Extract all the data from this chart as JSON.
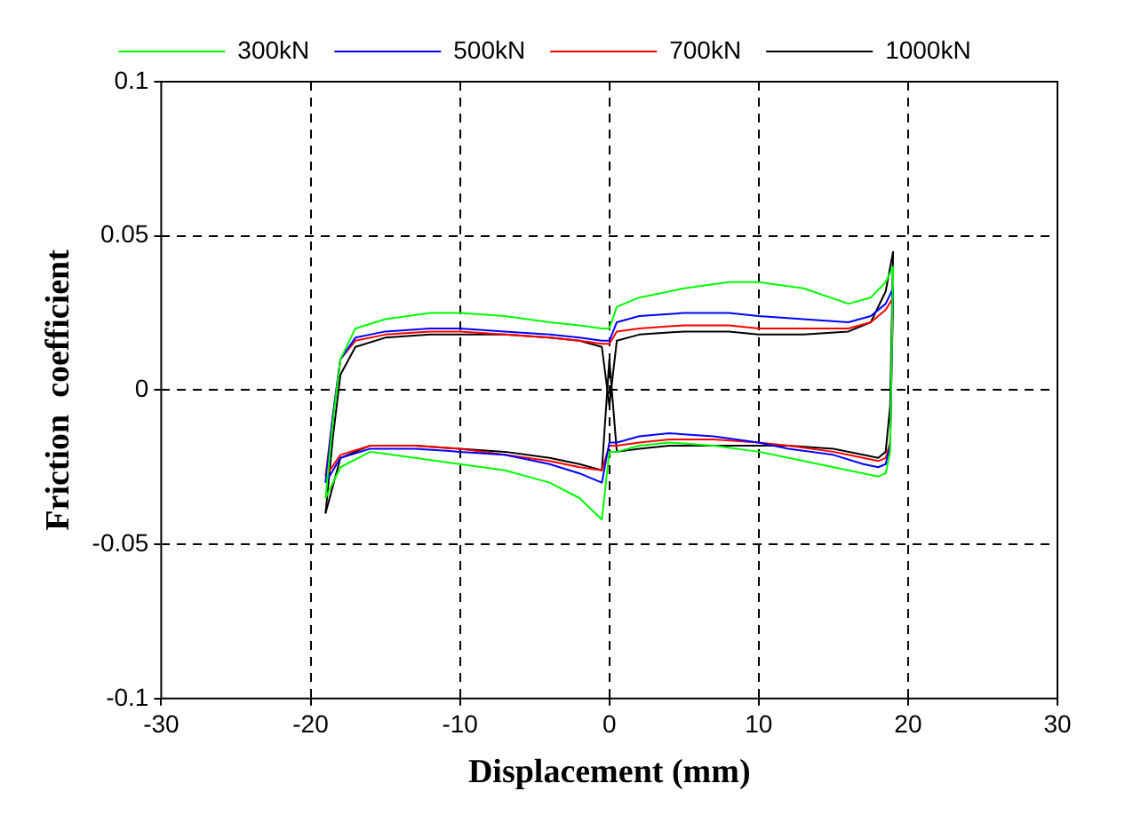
{
  "chart_data": {
    "type": "line",
    "xlabel": "Displacement (mm)",
    "ylabel": "Friction  coefficient",
    "xlim": [
      -30,
      30
    ],
    "xticks": [
      -30,
      -20,
      -10,
      0,
      10,
      20,
      30
    ],
    "ylim": [
      -0.1,
      0.1
    ],
    "yticks": [
      -0.1,
      -0.05,
      0,
      0.05,
      0.1
    ],
    "grid": true,
    "legend": "top",
    "marker": "none",
    "line_style": "solid",
    "series": [
      {
        "name": "300kN",
        "color": "#00ff00",
        "x": [
          -19,
          -18.5,
          -18,
          -17,
          -15,
          -12,
          -10,
          -7,
          -4,
          -2,
          -0.5,
          0,
          0.5,
          2,
          5,
          8,
          10,
          13,
          16,
          17.5,
          18.5,
          19
        ],
        "values": [
          -0.035,
          -0.01,
          0.01,
          0.02,
          0.023,
          0.025,
          0.025,
          0.024,
          0.022,
          0.021,
          0.02,
          0.02,
          0.027,
          0.03,
          0.033,
          0.035,
          0.035,
          0.033,
          0.028,
          0.03,
          0.035,
          0.04
        ]
      },
      {
        "color": "#00ff00",
        "x": [
          -19,
          -18,
          -16,
          -13,
          -10,
          -7,
          -4,
          -2,
          -0.5,
          0,
          0.5,
          2,
          4,
          7,
          10,
          12,
          15,
          17,
          18,
          18.5,
          18.8,
          19
        ],
        "values": [
          -0.035,
          -0.025,
          -0.02,
          -0.022,
          -0.024,
          -0.026,
          -0.03,
          -0.035,
          -0.042,
          -0.02,
          -0.02,
          -0.018,
          -0.017,
          -0.018,
          -0.02,
          -0.022,
          -0.025,
          -0.027,
          -0.028,
          -0.027,
          -0.02,
          0.04
        ]
      },
      {
        "name": "500kN",
        "color": "#0000ff",
        "x": [
          -19,
          -18.5,
          -18,
          -17,
          -15,
          -12,
          -10,
          -7,
          -4,
          -2,
          -0.5,
          0,
          0.5,
          2,
          5,
          8,
          10,
          13,
          16,
          17.5,
          18.5,
          19
        ],
        "values": [
          -0.03,
          -0.008,
          0.01,
          0.017,
          0.019,
          0.02,
          0.02,
          0.019,
          0.018,
          0.017,
          0.016,
          0.016,
          0.022,
          0.024,
          0.025,
          0.025,
          0.024,
          0.023,
          0.022,
          0.024,
          0.028,
          0.033
        ]
      },
      {
        "color": "#0000ff",
        "x": [
          -19,
          -18,
          -16,
          -13,
          -10,
          -7,
          -4,
          -2,
          -0.5,
          0,
          0.5,
          2,
          4,
          7,
          10,
          12,
          15,
          17,
          18,
          18.5,
          18.8,
          19
        ],
        "values": [
          -0.03,
          -0.022,
          -0.019,
          -0.019,
          -0.02,
          -0.021,
          -0.024,
          -0.027,
          -0.03,
          -0.017,
          -0.017,
          -0.015,
          -0.014,
          -0.015,
          -0.017,
          -0.019,
          -0.021,
          -0.024,
          -0.025,
          -0.024,
          -0.018,
          0.033
        ]
      },
      {
        "name": "700kN",
        "color": "#ff0000",
        "x": [
          -19,
          -18.5,
          -18,
          -17,
          -15,
          -12,
          -10,
          -7,
          -4,
          -2,
          -0.5,
          0,
          0.5,
          2,
          5,
          8,
          10,
          13,
          16,
          17.5,
          18.5,
          19
        ],
        "values": [
          -0.028,
          -0.008,
          0.01,
          0.016,
          0.018,
          0.019,
          0.019,
          0.018,
          0.017,
          0.016,
          0.015,
          0.015,
          0.019,
          0.02,
          0.021,
          0.021,
          0.02,
          0.02,
          0.02,
          0.022,
          0.026,
          0.03
        ]
      },
      {
        "color": "#ff0000",
        "x": [
          -19,
          -18,
          -16,
          -13,
          -10,
          -7,
          -4,
          -2,
          -0.5,
          0,
          0.5,
          2,
          4,
          7,
          10,
          12,
          15,
          17,
          18,
          18.5,
          18.8,
          19
        ],
        "values": [
          -0.028,
          -0.021,
          -0.018,
          -0.018,
          -0.019,
          -0.021,
          -0.023,
          -0.025,
          -0.026,
          -0.018,
          -0.018,
          -0.017,
          -0.016,
          -0.016,
          -0.017,
          -0.018,
          -0.02,
          -0.022,
          -0.023,
          -0.022,
          -0.017,
          0.03
        ]
      },
      {
        "name": "1000kN",
        "color": "#000000",
        "x": [
          -19,
          -18.5,
          -18,
          -17,
          -15,
          -12,
          -10,
          -7,
          -4,
          -2,
          -0.5,
          0,
          0.5,
          2,
          5,
          8,
          10,
          13,
          16,
          17.5,
          18.5,
          19
        ],
        "values": [
          -0.04,
          -0.015,
          0.005,
          0.014,
          0.017,
          0.018,
          0.018,
          0.018,
          0.017,
          0.016,
          0.014,
          -0.005,
          0.016,
          0.018,
          0.019,
          0.019,
          0.018,
          0.018,
          0.019,
          0.022,
          0.032,
          0.045
        ]
      },
      {
        "color": "#000000",
        "x": [
          -19,
          -18,
          -16,
          -13,
          -10,
          -7,
          -4,
          -2,
          -0.5,
          0,
          0.5,
          2,
          4,
          7,
          10,
          12,
          15,
          17,
          18,
          18.5,
          18.8,
          19
        ],
        "values": [
          -0.04,
          -0.022,
          -0.018,
          -0.018,
          -0.019,
          -0.02,
          -0.022,
          -0.024,
          -0.026,
          0.01,
          -0.02,
          -0.019,
          -0.018,
          -0.018,
          -0.018,
          -0.018,
          -0.019,
          -0.021,
          -0.022,
          -0.02,
          -0.005,
          0.045
        ]
      }
    ]
  }
}
